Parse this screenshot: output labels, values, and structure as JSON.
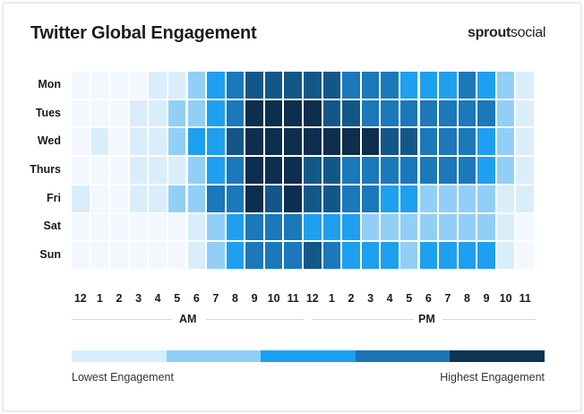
{
  "chart_data": {
    "type": "heatmap",
    "title": "Twitter Global Engagement",
    "rows": [
      "Mon",
      "Tues",
      "Wed",
      "Thurs",
      "Fri",
      "Sat",
      "Sun"
    ],
    "columns": [
      "12",
      "1",
      "2",
      "3",
      "4",
      "5",
      "6",
      "7",
      "8",
      "9",
      "10",
      "11",
      "12",
      "1",
      "2",
      "3",
      "4",
      "5",
      "6",
      "7",
      "8",
      "9",
      "10",
      "11"
    ],
    "column_groups": [
      {
        "label": "AM"
      },
      {
        "label": "PM"
      }
    ],
    "values": [
      [
        0,
        0,
        0,
        0,
        1,
        1,
        2,
        3,
        4,
        5,
        5,
        5,
        5,
        5,
        4,
        4,
        4,
        3,
        3,
        3,
        4,
        3,
        2,
        1
      ],
      [
        0,
        0,
        0,
        1,
        1,
        2,
        2,
        3,
        4,
        6,
        6,
        6,
        6,
        5,
        5,
        4,
        4,
        4,
        4,
        4,
        4,
        4,
        2,
        1
      ],
      [
        0,
        1,
        0,
        1,
        1,
        2,
        3,
        3,
        5,
        6,
        6,
        6,
        6,
        6,
        6,
        6,
        5,
        5,
        4,
        4,
        4,
        3,
        2,
        1
      ],
      [
        0,
        0,
        0,
        1,
        1,
        1,
        2,
        3,
        4,
        6,
        6,
        6,
        5,
        5,
        4,
        4,
        4,
        4,
        4,
        4,
        4,
        3,
        2,
        1
      ],
      [
        1,
        0,
        0,
        1,
        1,
        2,
        2,
        4,
        4,
        6,
        5,
        6,
        5,
        5,
        4,
        4,
        3,
        3,
        2,
        2,
        2,
        2,
        1,
        1
      ],
      [
        0,
        0,
        0,
        0,
        0,
        0,
        1,
        2,
        3,
        4,
        4,
        4,
        3,
        3,
        3,
        2,
        2,
        2,
        2,
        2,
        2,
        2,
        1,
        0
      ],
      [
        0,
        0,
        0,
        0,
        0,
        0,
        1,
        2,
        3,
        4,
        4,
        4,
        5,
        4,
        3,
        3,
        3,
        2,
        3,
        3,
        3,
        3,
        1,
        0
      ]
    ],
    "color_scale": [
      "#f2f8fe",
      "#daedfb",
      "#92cff7",
      "#1f9ff0",
      "#1a78bb",
      "#135789",
      "#0d2e4e"
    ],
    "legend": {
      "low_label": "Lowest Engagement",
      "high_label": "Highest Engagement",
      "colors": [
        "#d6eefc",
        "#8ed0f8",
        "#1da1f2",
        "#1a75b8",
        "#0e3354"
      ],
      "placement": "bottom"
    }
  },
  "brand": {
    "logo_bold": "sprout",
    "logo_regular": "social"
  }
}
